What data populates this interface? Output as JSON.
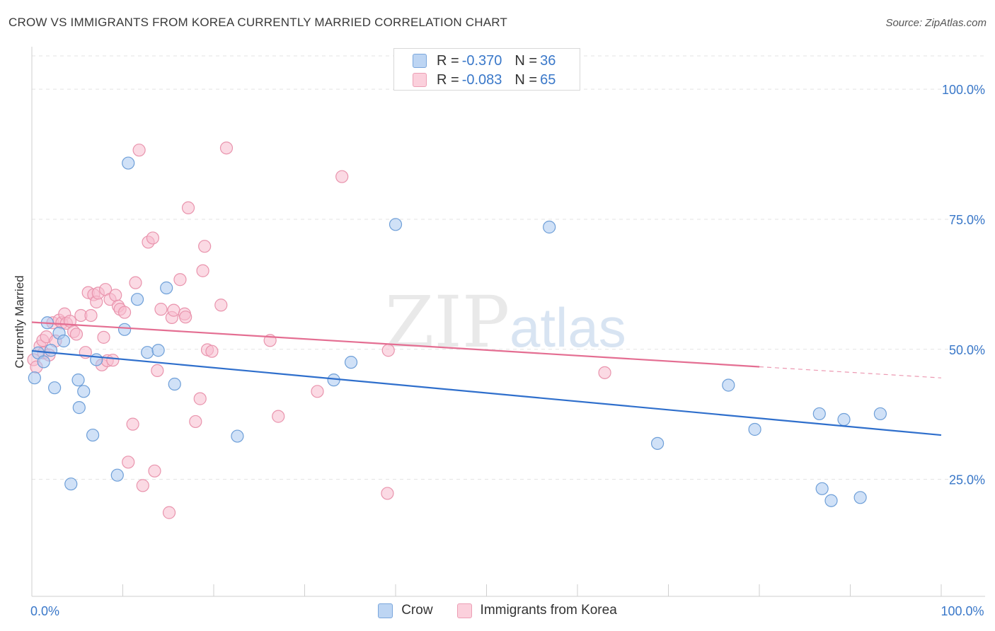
{
  "title": "CROW VS IMMIGRANTS FROM KOREA CURRENTLY MARRIED CORRELATION CHART",
  "source": "Source: ZipAtlas.com",
  "watermark": {
    "zip": "ZIP",
    "atlas": "atlas"
  },
  "legend_top": [
    {
      "r_label": "R = ",
      "r_value": "-0.370",
      "n_label": "N = ",
      "n_value": "36"
    },
    {
      "r_label": "R = ",
      "r_value": "-0.083",
      "n_label": "N = ",
      "n_value": "65"
    }
  ],
  "legend_bottom": [
    {
      "label": "Crow"
    },
    {
      "label": "Immigrants from Korea"
    }
  ],
  "colors": {
    "crow_fill": "#aac8f0",
    "crow_stroke": "#6e9fd8",
    "crow_line": "#2f6fcc",
    "korea_fill": "#f7bccd",
    "korea_stroke": "#e994ad",
    "korea_line": "#e46e92",
    "tick_text": "#3a78c9"
  },
  "chart_data": {
    "type": "scatter",
    "title": "CROW VS IMMIGRANTS FROM KOREA CURRENTLY MARRIED CORRELATION CHART",
    "xlabel": "",
    "ylabel": "Currently Married",
    "xlim": [
      0,
      100
    ],
    "ylim": [
      2.5,
      107.5
    ],
    "x_tick_labels": [
      {
        "value": 0,
        "label": "0.0%"
      },
      {
        "value": 100,
        "label": "100.0%"
      }
    ],
    "y_tick_labels": [
      {
        "value": 25,
        "label": "25.0%"
      },
      {
        "value": 50,
        "label": "50.0%"
      },
      {
        "value": 75,
        "label": "75.0%"
      },
      {
        "value": 100,
        "label": "100.0%"
      }
    ],
    "series": [
      {
        "name": "Crow",
        "points": [
          [
            0.3,
            44.5
          ],
          [
            0.7,
            49.3
          ],
          [
            1.3,
            47.6
          ],
          [
            1.7,
            55.1
          ],
          [
            2.1,
            49.8
          ],
          [
            2.5,
            42.6
          ],
          [
            3,
            53.1
          ],
          [
            3.5,
            51.6
          ],
          [
            4.3,
            24.1
          ],
          [
            5.1,
            44.1
          ],
          [
            5.2,
            38.8
          ],
          [
            5.7,
            41.9
          ],
          [
            6.7,
            33.5
          ],
          [
            7.1,
            48
          ],
          [
            9.4,
            25.8
          ],
          [
            10.2,
            53.8
          ],
          [
            10.6,
            85.8
          ],
          [
            11.6,
            59.6
          ],
          [
            12.7,
            49.4
          ],
          [
            13.9,
            49.8
          ],
          [
            14.8,
            61.8
          ],
          [
            15.7,
            43.3
          ],
          [
            22.6,
            33.3
          ],
          [
            33.2,
            44.1
          ],
          [
            35.1,
            47.5
          ],
          [
            40,
            74
          ],
          [
            56.9,
            73.5
          ],
          [
            68.8,
            31.9
          ],
          [
            76.6,
            43.1
          ],
          [
            79.5,
            34.6
          ],
          [
            86.6,
            37.6
          ],
          [
            86.9,
            23.2
          ],
          [
            87.9,
            20.9
          ],
          [
            89.3,
            36.5
          ],
          [
            91.1,
            21.5
          ],
          [
            93.3,
            37.6
          ]
        ],
        "trend": {
          "x0": 0,
          "y0": 49.7,
          "x1": 100,
          "y1": 33.5,
          "dashed_from": null
        }
      },
      {
        "name": "Immigrants from Korea",
        "points": [
          [
            0.2,
            48
          ],
          [
            0.5,
            46.6
          ],
          [
            0.9,
            50.6
          ],
          [
            1.2,
            51.7
          ],
          [
            1.3,
            49.3
          ],
          [
            1.6,
            52.4
          ],
          [
            1.9,
            48.9
          ],
          [
            2.3,
            55.1
          ],
          [
            2.6,
            51.6
          ],
          [
            3,
            55.6
          ],
          [
            3.3,
            55.1
          ],
          [
            3.6,
            56.8
          ],
          [
            3.8,
            55
          ],
          [
            4.2,
            55.4
          ],
          [
            4.6,
            53.4
          ],
          [
            4.9,
            52.9
          ],
          [
            5.4,
            56.5
          ],
          [
            5.9,
            49.4
          ],
          [
            6.2,
            60.9
          ],
          [
            6.5,
            56.5
          ],
          [
            6.8,
            60.5
          ],
          [
            7.1,
            59.1
          ],
          [
            7.3,
            60.8
          ],
          [
            7.7,
            47
          ],
          [
            7.9,
            52.3
          ],
          [
            8.1,
            61.5
          ],
          [
            8.3,
            47.8
          ],
          [
            8.6,
            59.6
          ],
          [
            8.9,
            47.9
          ],
          [
            9.2,
            60.4
          ],
          [
            9.5,
            58.3
          ],
          [
            9.7,
            57.7
          ],
          [
            10.2,
            57.1
          ],
          [
            10.6,
            28.3
          ],
          [
            11.1,
            35.6
          ],
          [
            11.4,
            62.8
          ],
          [
            11.8,
            88.3
          ],
          [
            12.2,
            23.8
          ],
          [
            12.8,
            70.6
          ],
          [
            13.3,
            71.4
          ],
          [
            13.5,
            26.6
          ],
          [
            13.8,
            45.9
          ],
          [
            14.2,
            57.7
          ],
          [
            15.1,
            18.6
          ],
          [
            15.4,
            56.1
          ],
          [
            15.6,
            57.5
          ],
          [
            16.3,
            63.4
          ],
          [
            16.8,
            56.8
          ],
          [
            16.9,
            56.2
          ],
          [
            17.2,
            77.2
          ],
          [
            18,
            36.1
          ],
          [
            18.5,
            40.5
          ],
          [
            18.8,
            65.1
          ],
          [
            19,
            69.8
          ],
          [
            19.3,
            49.9
          ],
          [
            19.8,
            49.6
          ],
          [
            20.8,
            58.5
          ],
          [
            21.4,
            88.7
          ],
          [
            26.2,
            51.7
          ],
          [
            27.1,
            37.1
          ],
          [
            31.4,
            41.9
          ],
          [
            34.1,
            83.2
          ],
          [
            39.1,
            22.3
          ],
          [
            39.2,
            49.8
          ],
          [
            63,
            45.5
          ]
        ],
        "trend": {
          "x0": 0,
          "y0": 55.2,
          "x1": 100,
          "y1": 44.5,
          "dashed_from": 80
        }
      }
    ]
  }
}
